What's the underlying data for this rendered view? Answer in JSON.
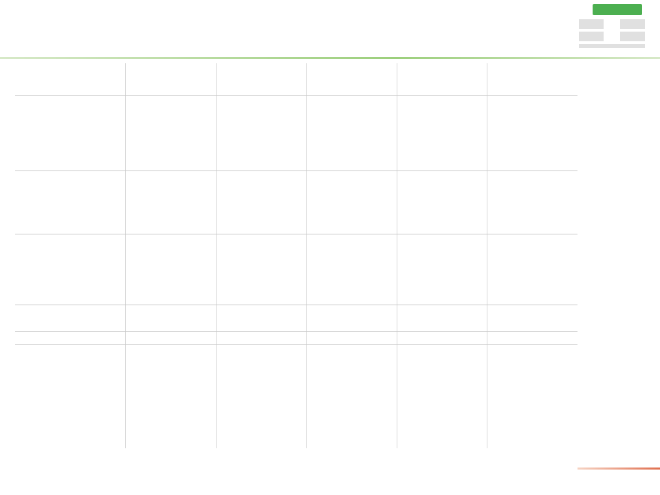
{
  "header": {
    "title": "",
    "subtitle": ""
  },
  "logo": {
    "badge_color": "#4caf50",
    "cells": 6
  },
  "table": {
    "units_label": "",
    "column_groups": [
      {
        "name": "",
        "subcols": [
          "",
          "",
          ""
        ]
      },
      {
        "name": "",
        "subcols": [
          "",
          "",
          ""
        ]
      },
      {
        "name": "",
        "subcols": [
          "",
          "",
          ""
        ]
      },
      {
        "name": "",
        "subcols": [
          "",
          "",
          ""
        ]
      },
      {
        "name": "",
        "subcols": [
          "",
          "",
          ""
        ]
      }
    ],
    "sections": [
      {
        "rows": [
          {
            "label": "",
            "bold": true
          },
          {
            "label": ""
          },
          {
            "label": ""
          },
          {
            "label": ""
          },
          {
            "label": ""
          },
          {
            "label": ""
          },
          {
            "label": ""
          },
          {
            "label": ""
          },
          {
            "label": ""
          },
          {
            "label": ""
          }
        ]
      },
      {
        "rows": [
          {
            "label": "",
            "bold": true
          },
          {
            "label": ""
          },
          {
            "label": ""
          },
          {
            "label": ""
          },
          {
            "label": ""
          },
          {
            "label": ""
          },
          {
            "label": ""
          },
          {
            "label": ""
          }
        ]
      },
      {
        "rows": [
          {
            "label": "",
            "bold": true
          },
          {
            "label": ""
          },
          {
            "label": ""
          },
          {
            "label": ""
          },
          {
            "label": ""
          },
          {
            "label": ""
          },
          {
            "label": ""
          },
          {
            "label": ""
          },
          {
            "label": ""
          }
        ]
      },
      {
        "rows": [
          {
            "label": "",
            "bold": true
          },
          {
            "label": "",
            "bold": true
          },
          {
            "label": "",
            "bold": true
          }
        ]
      },
      {
        "rows": [
          {
            "label": "",
            "bold": true
          }
        ]
      }
    ],
    "positive_color": "#3a9a3a",
    "negative_color": "#d04040"
  },
  "footnotes": [
    "",
    "",
    ""
  ],
  "page_number": ""
}
